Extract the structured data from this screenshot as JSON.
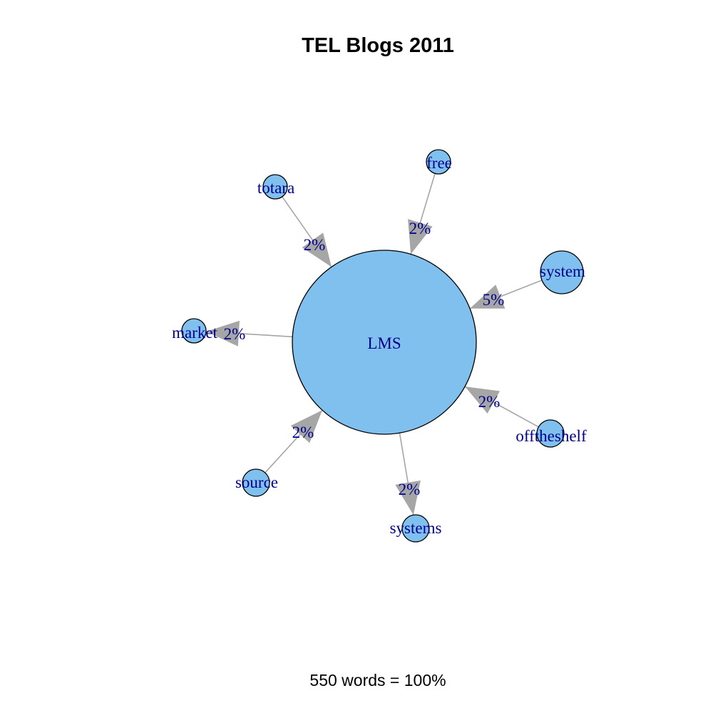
{
  "title": "TEL Blogs 2011",
  "footer": "550 words = 100%",
  "colors": {
    "node_fill": "#80c0ee",
    "node_stroke": "#000000",
    "label_text": "#00008b",
    "edge": "#a6a6a6"
  },
  "network": {
    "center": {
      "id": "LMS",
      "label": "LMS"
    },
    "nodes": [
      {
        "id": "free",
        "label": "free"
      },
      {
        "id": "totara",
        "label": "totara"
      },
      {
        "id": "system",
        "label": "system"
      },
      {
        "id": "market",
        "label": "market"
      },
      {
        "id": "offtheshelf",
        "label": "offtheshelf"
      },
      {
        "id": "source",
        "label": "source"
      },
      {
        "id": "systems",
        "label": "systems"
      }
    ],
    "edges": [
      {
        "from": "free",
        "to": "LMS",
        "label": "2%",
        "value": 2
      },
      {
        "from": "totara",
        "to": "LMS",
        "label": "2%",
        "value": 2
      },
      {
        "from": "system",
        "to": "LMS",
        "label": "5%",
        "value": 5
      },
      {
        "from": "LMS",
        "to": "market",
        "label": "2%",
        "value": 2
      },
      {
        "from": "offtheshelf",
        "to": "LMS",
        "label": "2%",
        "value": 2
      },
      {
        "from": "source",
        "to": "LMS",
        "label": "2%",
        "value": 2
      },
      {
        "from": "LMS",
        "to": "systems",
        "label": "2%",
        "value": 2
      }
    ]
  }
}
